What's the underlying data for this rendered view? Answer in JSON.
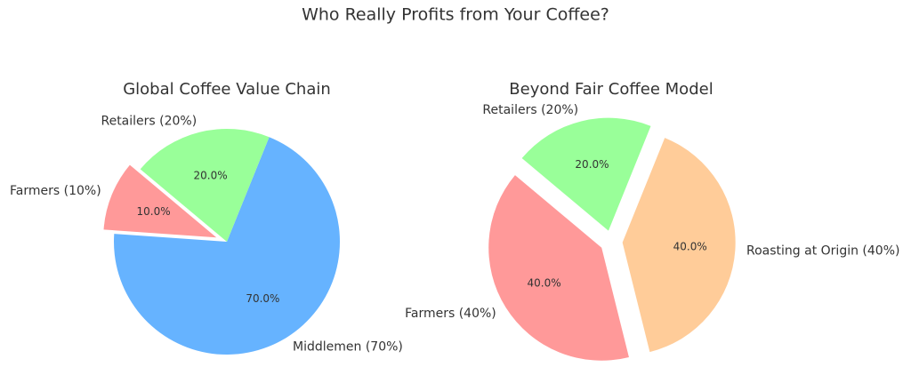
{
  "title": "Who Really Profits from Your Coffee?",
  "chart_data": [
    {
      "type": "pie",
      "title": "Global Coffee Value Chain",
      "categories": [
        "Farmers (10%)",
        "Middlemen (70%)",
        "Retailers (20%)"
      ],
      "values": [
        10,
        70,
        20
      ],
      "value_labels": [
        "10.0%",
        "70.0%",
        "20.0%"
      ],
      "colors": [
        "#ff9999",
        "#66b3ff",
        "#99ff99"
      ]
    },
    {
      "type": "pie",
      "title": "Beyond Fair Coffee Model",
      "categories": [
        "Farmers (40%)",
        "Roasting at Origin (40%)",
        "Retailers (20%)"
      ],
      "values": [
        40,
        40,
        20
      ],
      "value_labels": [
        "40.0%",
        "40.0%",
        "20.0%"
      ],
      "colors": [
        "#ff9999",
        "#ffcc99",
        "#99ff99"
      ]
    }
  ]
}
